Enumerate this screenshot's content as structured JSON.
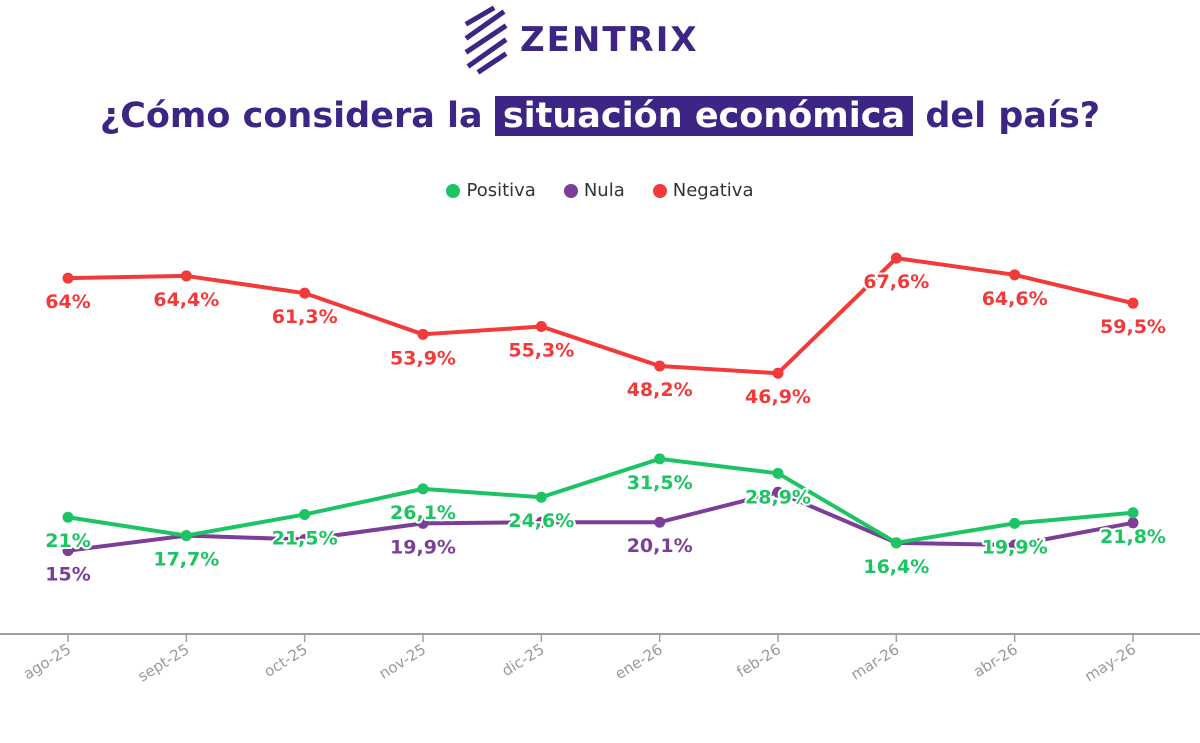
{
  "brand": {
    "name": "ZENTRIX",
    "logo_icon": "zentrix-logo-icon",
    "color": "#3d2585"
  },
  "title": {
    "before": "¿Cómo considera la",
    "highlight": "situación económica",
    "after": "del país?"
  },
  "chart_data": {
    "type": "line",
    "categories": [
      "ago-25",
      "sept-25",
      "oct-25",
      "nov-25",
      "dic-25",
      "ene-26",
      "feb-26",
      "mar-26",
      "abr-26",
      "may-26"
    ],
    "series": [
      {
        "name": "Positiva",
        "color": "#1cc463",
        "values": [
          21,
          17.7,
          21.5,
          26.1,
          24.6,
          31.5,
          28.9,
          16.4,
          19.9,
          21.8
        ],
        "labels": [
          "21%",
          "17,7%",
          "21,5%",
          "26,1%",
          "24,6%",
          "31,5%",
          "28,9%",
          "16,4%",
          "19,9%",
          "21,8%"
        ]
      },
      {
        "name": "Nula",
        "color": "#7b3f98",
        "values": [
          15,
          17.7,
          17,
          19.9,
          20.1,
          20.1,
          25.5,
          16.4,
          16,
          20
        ],
        "labels": [
          "15%",
          "",
          "",
          "19,9%",
          "",
          "20,1%",
          "",
          "",
          "",
          ""
        ]
      },
      {
        "name": "Negativa",
        "color": "#f23a3a",
        "values": [
          64,
          64.4,
          61.3,
          53.9,
          55.3,
          48.2,
          46.9,
          67.6,
          64.6,
          59.5
        ],
        "labels": [
          "64%",
          "64,4%",
          "61,3%",
          "53,9%",
          "55,3%",
          "48,2%",
          "46,9%",
          "67,6%",
          "64,6%",
          "59,5%"
        ]
      }
    ],
    "ylim": [
      0,
      75
    ],
    "grid": false,
    "legend_position": "top-center"
  }
}
